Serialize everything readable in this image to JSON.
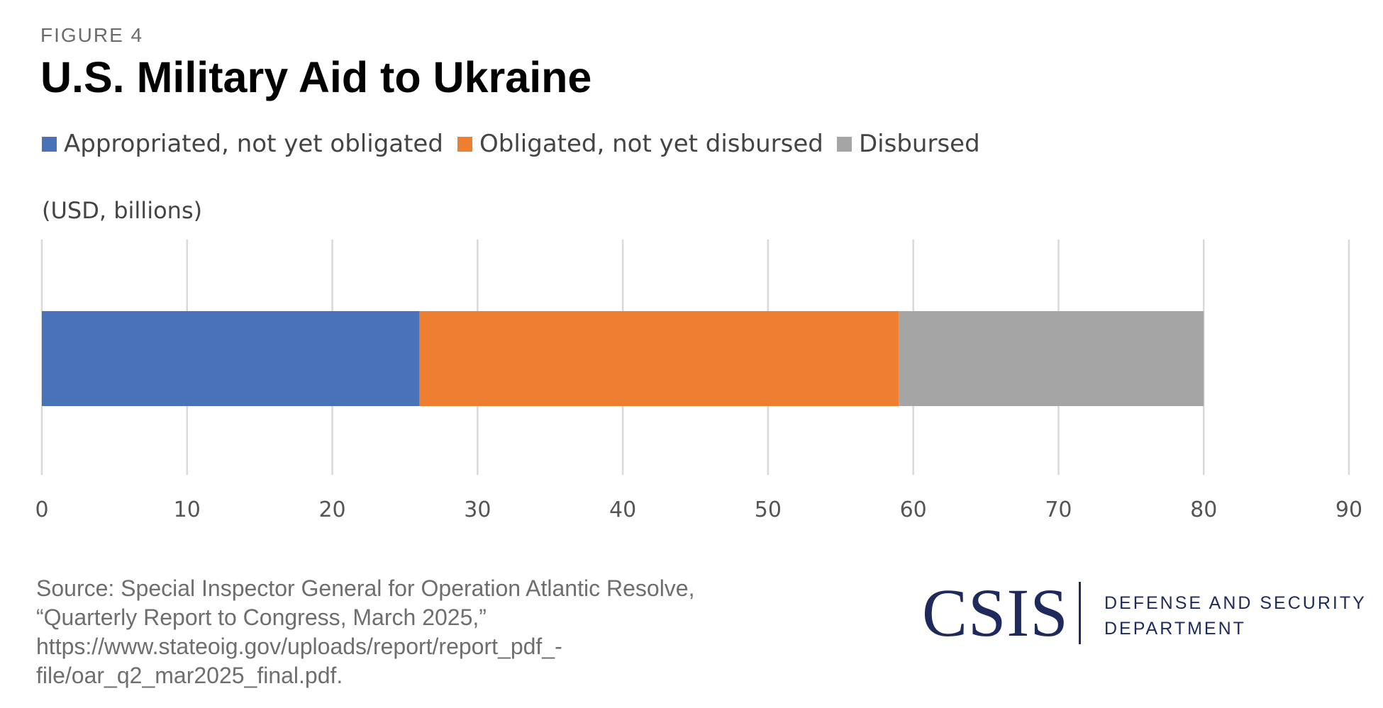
{
  "figure_label": "FIGURE 4",
  "logo": {
    "wordmark": "CSIS",
    "department_line1": "DEFENSE AND SECURITY",
    "department_line2": "DEPARTMENT"
  },
  "source": "Source: Special Inspector General for Operation Atlantic Resolve, “Quarterly Report to Congress, March 2025,” https://www.stateoig.gov/uploads/report/report_pdf_-file/oar_q2_mar2025_final.pdf.",
  "chart_data": {
    "type": "bar",
    "orientation": "horizontal",
    "stacked": true,
    "title": "U.S. Military Aid to Ukraine",
    "unit_label": "(USD, billions)",
    "categories": [
      ""
    ],
    "series": [
      {
        "name": "Appropriated, not yet obligated",
        "color": "#4a72b8",
        "values": [
          26
        ]
      },
      {
        "name": "Obligated, not yet disbursed",
        "color": "#ee7e31",
        "values": [
          33
        ]
      },
      {
        "name": "Disbursed",
        "color": "#a5a5a5",
        "values": [
          21
        ]
      }
    ],
    "xlim": [
      0,
      90
    ],
    "x_ticks": [
      "0",
      "10",
      "20",
      "30",
      "40",
      "50",
      "60",
      "70",
      "80",
      "90"
    ],
    "grid": true,
    "legend_position": "top"
  }
}
